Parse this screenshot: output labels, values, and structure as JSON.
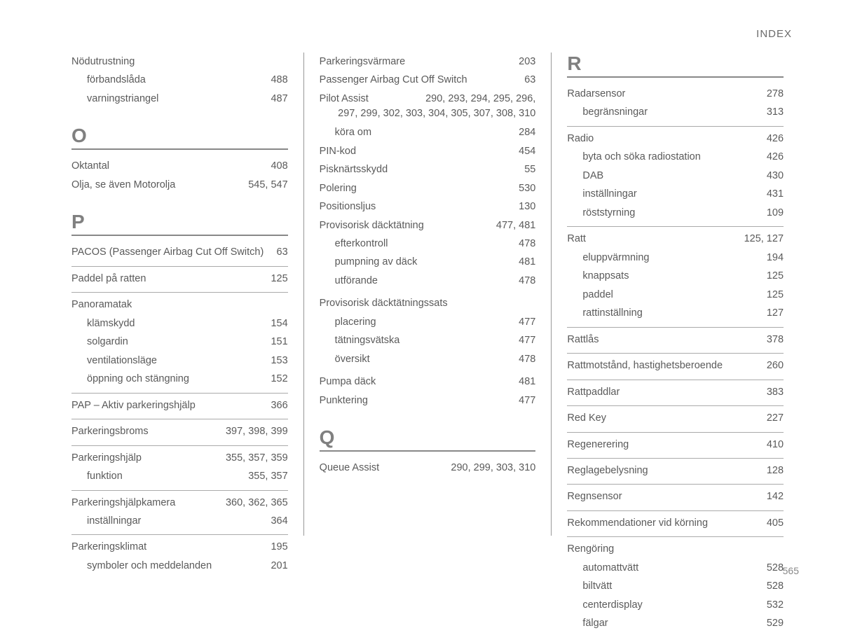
{
  "header": "INDEX",
  "page_number": "565",
  "col1": {
    "top_entries": [
      {
        "term": "Nödutrustning",
        "pages": "",
        "indent": 0
      },
      {
        "term": "förbandslåda",
        "pages": "488",
        "indent": 1
      },
      {
        "term": "varningstriangel",
        "pages": "487",
        "indent": 1
      }
    ],
    "o_letter": "O",
    "o_entries": [
      {
        "term": "Oktantal",
        "pages": "408",
        "indent": 0
      },
      {
        "term": "Olja, se även Motorolja",
        "pages": "545, 547",
        "indent": 0
      }
    ],
    "p_letter": "P",
    "p_groups": [
      [
        {
          "term": "PACOS (Passenger Airbag Cut Off Switch)",
          "pages": "63",
          "indent": 0
        }
      ],
      [
        {
          "term": "Paddel på ratten",
          "pages": "125",
          "indent": 0
        }
      ],
      [
        {
          "term": "Panoramatak",
          "pages": "",
          "indent": 0
        },
        {
          "term": "klämskydd",
          "pages": "154",
          "indent": 1
        },
        {
          "term": "solgardin",
          "pages": "151",
          "indent": 1
        },
        {
          "term": "ventilationsläge",
          "pages": "153",
          "indent": 1
        },
        {
          "term": "öppning och stängning",
          "pages": "152",
          "indent": 1
        }
      ],
      [
        {
          "term": "PAP – Aktiv parkeringshjälp",
          "pages": "366",
          "indent": 0
        }
      ],
      [
        {
          "term": "Parkeringsbroms",
          "pages": "397, 398, 399",
          "indent": 0
        }
      ],
      [
        {
          "term": "Parkeringshjälp",
          "pages": "355, 357, 359",
          "indent": 0
        },
        {
          "term": "funktion",
          "pages": "355, 357",
          "indent": 1
        }
      ],
      [
        {
          "term": "Parkeringshjälpkamera",
          "pages": "360, 362, 365",
          "indent": 0
        },
        {
          "term": "inställningar",
          "pages": "364",
          "indent": 1
        }
      ],
      [
        {
          "term": "Parkeringsklimat",
          "pages": "195",
          "indent": 0
        },
        {
          "term": "symboler och meddelanden",
          "pages": "201",
          "indent": 1
        }
      ]
    ]
  },
  "col2": {
    "plain_top": [
      {
        "term": "Parkeringsvärmare",
        "pages": "203",
        "indent": 0
      },
      {
        "term": "Passenger Airbag Cut Off Switch",
        "pages": "63",
        "indent": 0
      }
    ],
    "pilot_term": "Pilot Assist",
    "pilot_pages_line1": "290, 293, 294, 295, 296,",
    "pilot_pages_line2": "297, 299, 302, 303, 304, 305, 307, 308, 310",
    "pilot_sub": {
      "term": "köra om",
      "pages": "284"
    },
    "plain_after": [
      {
        "term": "PIN-kod",
        "pages": "454",
        "indent": 0
      },
      {
        "term": "Pisknärtsskydd",
        "pages": "55",
        "indent": 0
      },
      {
        "term": "Polering",
        "pages": "530",
        "indent": 0
      },
      {
        "term": "Positionsljus",
        "pages": "130",
        "indent": 0
      }
    ],
    "prov1": [
      {
        "term": "Provisorisk däcktätning",
        "pages": "477, 481",
        "indent": 0
      },
      {
        "term": "efterkontroll",
        "pages": "478",
        "indent": 1
      },
      {
        "term": "pumpning av däck",
        "pages": "481",
        "indent": 1
      },
      {
        "term": "utförande",
        "pages": "478",
        "indent": 1
      }
    ],
    "prov2": [
      {
        "term": "Provisorisk däcktätningssats",
        "pages": "",
        "indent": 0
      },
      {
        "term": "placering",
        "pages": "477",
        "indent": 1
      },
      {
        "term": "tätningsvätska",
        "pages": "477",
        "indent": 1
      },
      {
        "term": "översikt",
        "pages": "478",
        "indent": 1
      }
    ],
    "plain_tail": [
      {
        "term": "Pumpa däck",
        "pages": "481",
        "indent": 0
      },
      {
        "term": "Punktering",
        "pages": "477",
        "indent": 0
      }
    ],
    "q_letter": "Q",
    "q_entries": [
      {
        "term": "Queue Assist",
        "pages": "290, 299, 303, 310",
        "indent": 0
      }
    ]
  },
  "col3": {
    "r_letter": "R",
    "r_groups": [
      [
        {
          "term": "Radarsensor",
          "pages": "278",
          "indent": 0
        },
        {
          "term": "begränsningar",
          "pages": "313",
          "indent": 1
        }
      ],
      [
        {
          "term": "Radio",
          "pages": "426",
          "indent": 0
        },
        {
          "term": "byta och söka radiostation",
          "pages": "426",
          "indent": 1
        },
        {
          "term": "DAB",
          "pages": "430",
          "indent": 1
        },
        {
          "term": "inställningar",
          "pages": "431",
          "indent": 1
        },
        {
          "term": "röststyrning",
          "pages": "109",
          "indent": 1
        }
      ],
      [
        {
          "term": "Ratt",
          "pages": "125, 127",
          "indent": 0
        },
        {
          "term": "eluppvärmning",
          "pages": "194",
          "indent": 1
        },
        {
          "term": "knappsats",
          "pages": "125",
          "indent": 1
        },
        {
          "term": "paddel",
          "pages": "125",
          "indent": 1
        },
        {
          "term": "rattinställning",
          "pages": "127",
          "indent": 1
        }
      ],
      [
        {
          "term": "Rattlås",
          "pages": "378",
          "indent": 0
        }
      ],
      [
        {
          "term": "Rattmotstånd, hastighetsberoende",
          "pages": "260",
          "indent": 0
        }
      ],
      [
        {
          "term": "Rattpaddlar",
          "pages": "383",
          "indent": 0
        }
      ],
      [
        {
          "term": "Red Key",
          "pages": "227",
          "indent": 0
        }
      ],
      [
        {
          "term": "Regenerering",
          "pages": "410",
          "indent": 0
        }
      ],
      [
        {
          "term": "Reglagebelysning",
          "pages": "128",
          "indent": 0
        }
      ],
      [
        {
          "term": "Regnsensor",
          "pages": "142",
          "indent": 0
        }
      ],
      [
        {
          "term": "Rekommendationer vid körning",
          "pages": "405",
          "indent": 0
        }
      ],
      [
        {
          "term": "Rengöring",
          "pages": "",
          "indent": 0
        },
        {
          "term": "automattvätt",
          "pages": "528",
          "indent": 1
        },
        {
          "term": "biltvätt",
          "pages": "528",
          "indent": 1
        },
        {
          "term": "centerdisplay",
          "pages": "532",
          "indent": 1
        },
        {
          "term": "fälgar",
          "pages": "529",
          "indent": 1
        }
      ]
    ]
  }
}
